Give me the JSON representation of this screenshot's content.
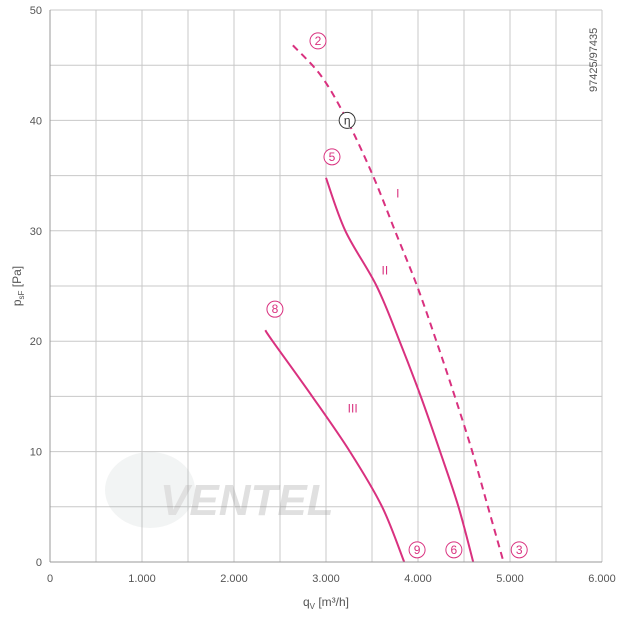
{
  "chart_data": {
    "type": "line",
    "title": "",
    "xlabel": "q",
    "xlabel_sub": "V",
    "xlabel_unit": " [m³/h]",
    "ylabel": "p",
    "ylabel_sub": "sF",
    "ylabel_unit": " [Pa]",
    "xlim": [
      0,
      6000
    ],
    "ylim": [
      0,
      50
    ],
    "x_ticks": [
      0,
      1000,
      2000,
      3000,
      4000,
      5000,
      6000
    ],
    "x_tick_labels": [
      "0",
      "1.000",
      "2.000",
      "3.000",
      "4.000",
      "5.000",
      "6.000"
    ],
    "y_ticks": [
      0,
      10,
      20,
      30,
      40,
      50
    ],
    "y_tick_labels": [
      "0",
      "10",
      "20",
      "30",
      "40",
      "50"
    ],
    "grid": true,
    "x_grid_step": 500,
    "y_grid_step": 5,
    "curve_color": "#d9317f",
    "grid_color": "#c8c8c8",
    "series": [
      {
        "name": "I",
        "style": "dashed",
        "x": [
          2640,
          2950,
          3230,
          3510,
          3750,
          3990,
          4200,
          4400,
          4590,
          4760,
          4930
        ],
        "y": [
          46.8,
          44,
          40,
          35,
          30,
          25,
          20,
          15,
          10,
          5,
          0
        ]
      },
      {
        "name": "II",
        "style": "solid",
        "x": [
          3000,
          3210,
          3550,
          3800,
          4030,
          4240,
          4440,
          4600
        ],
        "y": [
          34.8,
          30,
          25,
          20,
          15,
          10,
          5,
          0
        ]
      },
      {
        "name": "III",
        "style": "solid",
        "x": [
          2340,
          2420,
          2850,
          3260,
          3610,
          3850
        ],
        "y": [
          21,
          20,
          15,
          10,
          5,
          0
        ]
      }
    ],
    "annotations": [
      {
        "text": "2",
        "circled": true,
        "x": 2913,
        "y": 47.2,
        "color": "#d9317f"
      },
      {
        "text": "η",
        "circled": true,
        "x": 3230,
        "y": 40,
        "color": "#333333"
      },
      {
        "text": "5",
        "circled": true,
        "x": 3065,
        "y": 36.7,
        "color": "#d9317f"
      },
      {
        "text": "8",
        "circled": true,
        "x": 2445,
        "y": 22.9,
        "color": "#d9317f"
      },
      {
        "text": "9",
        "circled": true,
        "x": 3990,
        "y": 1.1,
        "color": "#d9317f"
      },
      {
        "text": "6",
        "circled": true,
        "x": 4390,
        "y": 1.1,
        "color": "#d9317f"
      },
      {
        "text": "3",
        "circled": true,
        "x": 5100,
        "y": 1.1,
        "color": "#d9317f"
      },
      {
        "text": "I",
        "circled": false,
        "x": 3780,
        "y": 33.4,
        "color": "#d9317f"
      },
      {
        "text": "II",
        "circled": false,
        "x": 3640,
        "y": 26.4,
        "color": "#d9317f"
      },
      {
        "text": "III",
        "circled": false,
        "x": 3290,
        "y": 13.9,
        "color": "#d9317f"
      }
    ],
    "side_label": "97425/97435",
    "watermark": "VENTEL"
  }
}
